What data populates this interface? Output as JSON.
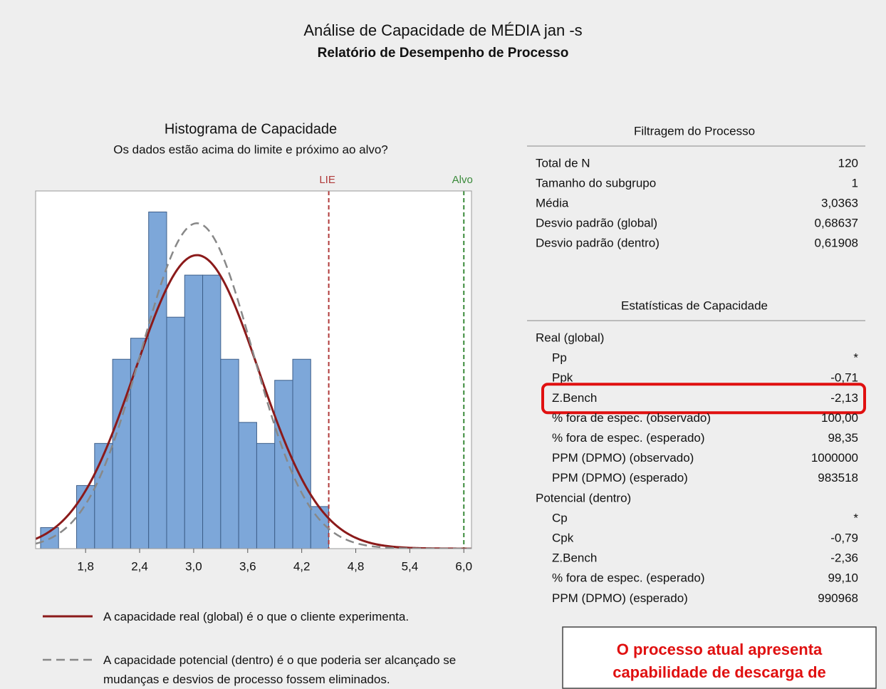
{
  "header": {
    "title": "Análise de Capacidade de MÉDIA jan -s",
    "subtitle": "Relatório de Desempenho de Processo"
  },
  "chart_data": {
    "type": "histogram",
    "title": "Histograma de Capacidade",
    "subtitle": "Os dados estão acima do limite e próximo ao alvo?",
    "bins": [
      1.3,
      1.5,
      1.7,
      1.9,
      2.1,
      2.3,
      2.5,
      2.7,
      2.9,
      3.1,
      3.3,
      3.5,
      3.7,
      3.9,
      4.1,
      4.3,
      4.5
    ],
    "counts": [
      1,
      0,
      3,
      5,
      9,
      10,
      16,
      11,
      13,
      13,
      9,
      6,
      5,
      8,
      9,
      2
    ],
    "color": "#7da7d9",
    "xlim": [
      1.245,
      6.085
    ],
    "ylim": [
      0,
      17
    ],
    "xticks": [
      {
        "value": 1.8,
        "label": "1,8"
      },
      {
        "value": 2.4,
        "label": "2,4"
      },
      {
        "value": 3.0,
        "label": "3,0"
      },
      {
        "value": 3.6,
        "label": "3,6"
      },
      {
        "value": 4.2,
        "label": "4,2"
      },
      {
        "value": 4.8,
        "label": "4,8"
      },
      {
        "value": 5.4,
        "label": "5,4"
      },
      {
        "value": 6.0,
        "label": "6,0"
      }
    ],
    "reference_lines": [
      {
        "label": "LIE",
        "value": 4.5,
        "color": "#b03a3a"
      },
      {
        "label": "Alvo",
        "value": 6.0,
        "color": "#3a8a3a"
      }
    ],
    "curves": [
      {
        "name": "A capacidade real (global) é o que o cliente experimenta.",
        "mean": 3.0363,
        "sd": 0.68637,
        "color": "#8b1a1a",
        "dashed": false
      },
      {
        "name": "A capacidade potencial (dentro) é o que poderia ser alcançado se mudanças e desvios de processo fossem eliminados.",
        "mean": 3.0363,
        "sd": 0.61908,
        "color": "#888888",
        "dashed": true
      }
    ]
  },
  "process_data": {
    "title": "Filtragem do Processo",
    "rows": [
      [
        "Total de N",
        "120"
      ],
      [
        "Tamanho do subgrupo",
        "1"
      ],
      [
        "Média",
        "3,0363"
      ],
      [
        "Desvio padrão (global)",
        "0,68637"
      ],
      [
        "Desvio padrão (dentro)",
        "0,61908"
      ]
    ]
  },
  "capability": {
    "title": "Estatísticas de Capacidade",
    "groups": [
      {
        "name": "Real (global)",
        "rows": [
          [
            "Pp",
            "*"
          ],
          [
            "Ppk",
            "-0,71"
          ],
          [
            "Z.Bench",
            "-2,13"
          ],
          [
            "% fora de espec. (observado)",
            "100,00"
          ],
          [
            "% fora de espec. (esperado)",
            "98,35"
          ],
          [
            "PPM (DPMO) (observado)",
            "1000000"
          ],
          [
            "PPM (DPMO) (esperado)",
            "983518"
          ]
        ]
      },
      {
        "name": "Potencial (dentro)",
        "rows": [
          [
            "Cp",
            "*"
          ],
          [
            "Cpk",
            "-0,79"
          ],
          [
            "Z.Bench",
            "-2,36"
          ],
          [
            "% fora de espec. (esperado)",
            "99,10"
          ],
          [
            "PPM (DPMO) (esperado)",
            "990968"
          ]
        ]
      }
    ]
  },
  "note": {
    "lines": [
      "O processo atual apresenta",
      "capabilidade de descarga de"
    ]
  }
}
